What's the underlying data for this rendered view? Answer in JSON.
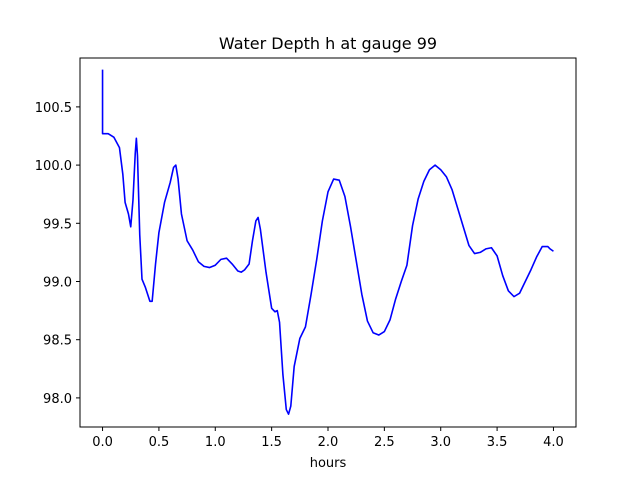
{
  "chart_data": {
    "type": "line",
    "title": "Water Depth h at gauge 99",
    "xlabel": "hours",
    "ylabel": "",
    "xlim": [
      -0.2,
      4.2
    ],
    "ylim": [
      97.75,
      100.92
    ],
    "xticks": [
      0.0,
      0.5,
      1.0,
      1.5,
      2.0,
      2.5,
      3.0,
      3.5,
      4.0
    ],
    "xtick_labels": [
      "0.0",
      "0.5",
      "1.0",
      "1.5",
      "2.0",
      "2.5",
      "3.0",
      "3.5",
      "4.0"
    ],
    "yticks": [
      98.0,
      98.5,
      99.0,
      99.5,
      100.0,
      100.5
    ],
    "ytick_labels": [
      "98.0",
      "98.5",
      "99.0",
      "99.5",
      "100.0",
      "100.5"
    ],
    "grid": false,
    "series": [
      {
        "color": "#0000ff",
        "x": [
          0.0,
          0.0,
          0.0,
          0.05,
          0.1,
          0.15,
          0.18,
          0.2,
          0.23,
          0.25,
          0.27,
          0.29,
          0.3,
          0.31,
          0.33,
          0.35,
          0.38,
          0.42,
          0.44,
          0.47,
          0.5,
          0.55,
          0.6,
          0.63,
          0.65,
          0.67,
          0.7,
          0.75,
          0.8,
          0.85,
          0.9,
          0.95,
          1.0,
          1.05,
          1.1,
          1.15,
          1.2,
          1.23,
          1.26,
          1.3,
          1.33,
          1.36,
          1.38,
          1.4,
          1.45,
          1.5,
          1.53,
          1.55,
          1.57,
          1.6,
          1.63,
          1.65,
          1.67,
          1.7,
          1.75,
          1.8,
          1.85,
          1.9,
          1.95,
          2.0,
          2.05,
          2.1,
          2.15,
          2.2,
          2.25,
          2.3,
          2.35,
          2.4,
          2.45,
          2.5,
          2.55,
          2.6,
          2.65,
          2.7,
          2.75,
          2.8,
          2.85,
          2.9,
          2.95,
          3.0,
          3.05,
          3.1,
          3.15,
          3.2,
          3.25,
          3.3,
          3.35,
          3.4,
          3.45,
          3.5,
          3.55,
          3.6,
          3.65,
          3.7,
          3.75,
          3.8,
          3.85,
          3.9,
          3.95,
          3.97,
          4.0
        ],
        "y": [
          100.82,
          100.3,
          100.27,
          100.27,
          100.24,
          100.15,
          99.92,
          99.68,
          99.58,
          99.47,
          99.7,
          100.1,
          100.23,
          100.08,
          99.4,
          99.02,
          98.95,
          98.83,
          98.83,
          99.15,
          99.42,
          99.68,
          99.85,
          99.98,
          100.0,
          99.88,
          99.58,
          99.35,
          99.27,
          99.17,
          99.13,
          99.12,
          99.14,
          99.19,
          99.2,
          99.15,
          99.09,
          99.08,
          99.1,
          99.15,
          99.35,
          99.52,
          99.55,
          99.45,
          99.08,
          98.77,
          98.74,
          98.75,
          98.65,
          98.2,
          97.9,
          97.86,
          97.93,
          98.27,
          98.51,
          98.61,
          98.89,
          99.19,
          99.52,
          99.77,
          99.88,
          99.87,
          99.73,
          99.47,
          99.18,
          98.89,
          98.66,
          98.56,
          98.54,
          98.57,
          98.67,
          98.85,
          99.0,
          99.14,
          99.48,
          99.71,
          99.86,
          99.96,
          100.0,
          99.96,
          99.9,
          99.79,
          99.63,
          99.47,
          99.31,
          99.24,
          99.25,
          99.28,
          99.29,
          99.22,
          99.05,
          98.92,
          98.87,
          98.9,
          99.0,
          99.1,
          99.21,
          99.3,
          99.3,
          99.28,
          99.26
        ]
      }
    ]
  }
}
